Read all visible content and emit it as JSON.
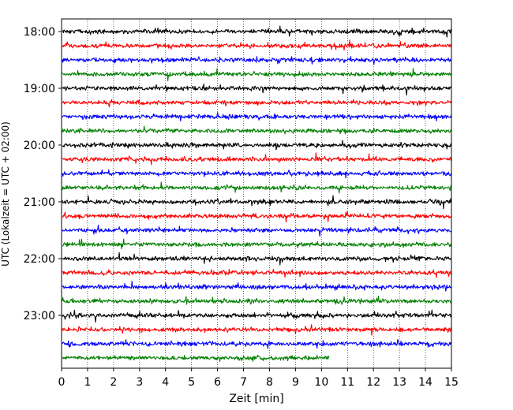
{
  "chart_data": {
    "type": "line",
    "title": "",
    "xlabel": "Zeit  [min]",
    "ylabel": "UTC (Lokalzeit = UTC + 02:00)",
    "xlim": [
      0,
      15
    ],
    "x_ticks": [
      "0",
      "1",
      "2",
      "3",
      "4",
      "5",
      "6",
      "7",
      "8",
      "9",
      "10",
      "11",
      "12",
      "13",
      "14",
      "15"
    ],
    "y_ticks": [
      "18:00",
      "19:00",
      "20:00",
      "21:00",
      "22:00",
      "23:00"
    ],
    "grid": "x-dotted",
    "trace_colors": [
      "#000000",
      "#ff0000",
      "#0000ff",
      "#008000"
    ],
    "rows": [
      {
        "start": "18:00",
        "end_min": 15
      },
      {
        "start": "18:15",
        "end_min": 15
      },
      {
        "start": "18:30",
        "end_min": 15
      },
      {
        "start": "18:45",
        "end_min": 15
      },
      {
        "start": "19:00",
        "end_min": 15
      },
      {
        "start": "19:15",
        "end_min": 15
      },
      {
        "start": "19:30",
        "end_min": 15
      },
      {
        "start": "19:45",
        "end_min": 15
      },
      {
        "start": "20:00",
        "end_min": 15
      },
      {
        "start": "20:15",
        "end_min": 15
      },
      {
        "start": "20:30",
        "end_min": 15
      },
      {
        "start": "20:45",
        "end_min": 15
      },
      {
        "start": "21:00",
        "end_min": 15
      },
      {
        "start": "21:15",
        "end_min": 15
      },
      {
        "start": "21:30",
        "end_min": 15
      },
      {
        "start": "21:45",
        "end_min": 15
      },
      {
        "start": "22:00",
        "end_min": 15
      },
      {
        "start": "22:15",
        "end_min": 15
      },
      {
        "start": "22:30",
        "end_min": 15
      },
      {
        "start": "22:45",
        "end_min": 15
      },
      {
        "start": "23:00",
        "end_min": 15
      },
      {
        "start": "23:15",
        "end_min": 15
      },
      {
        "start": "23:30",
        "end_min": 15
      },
      {
        "start": "23:45",
        "end_min": 10.3
      }
    ]
  }
}
